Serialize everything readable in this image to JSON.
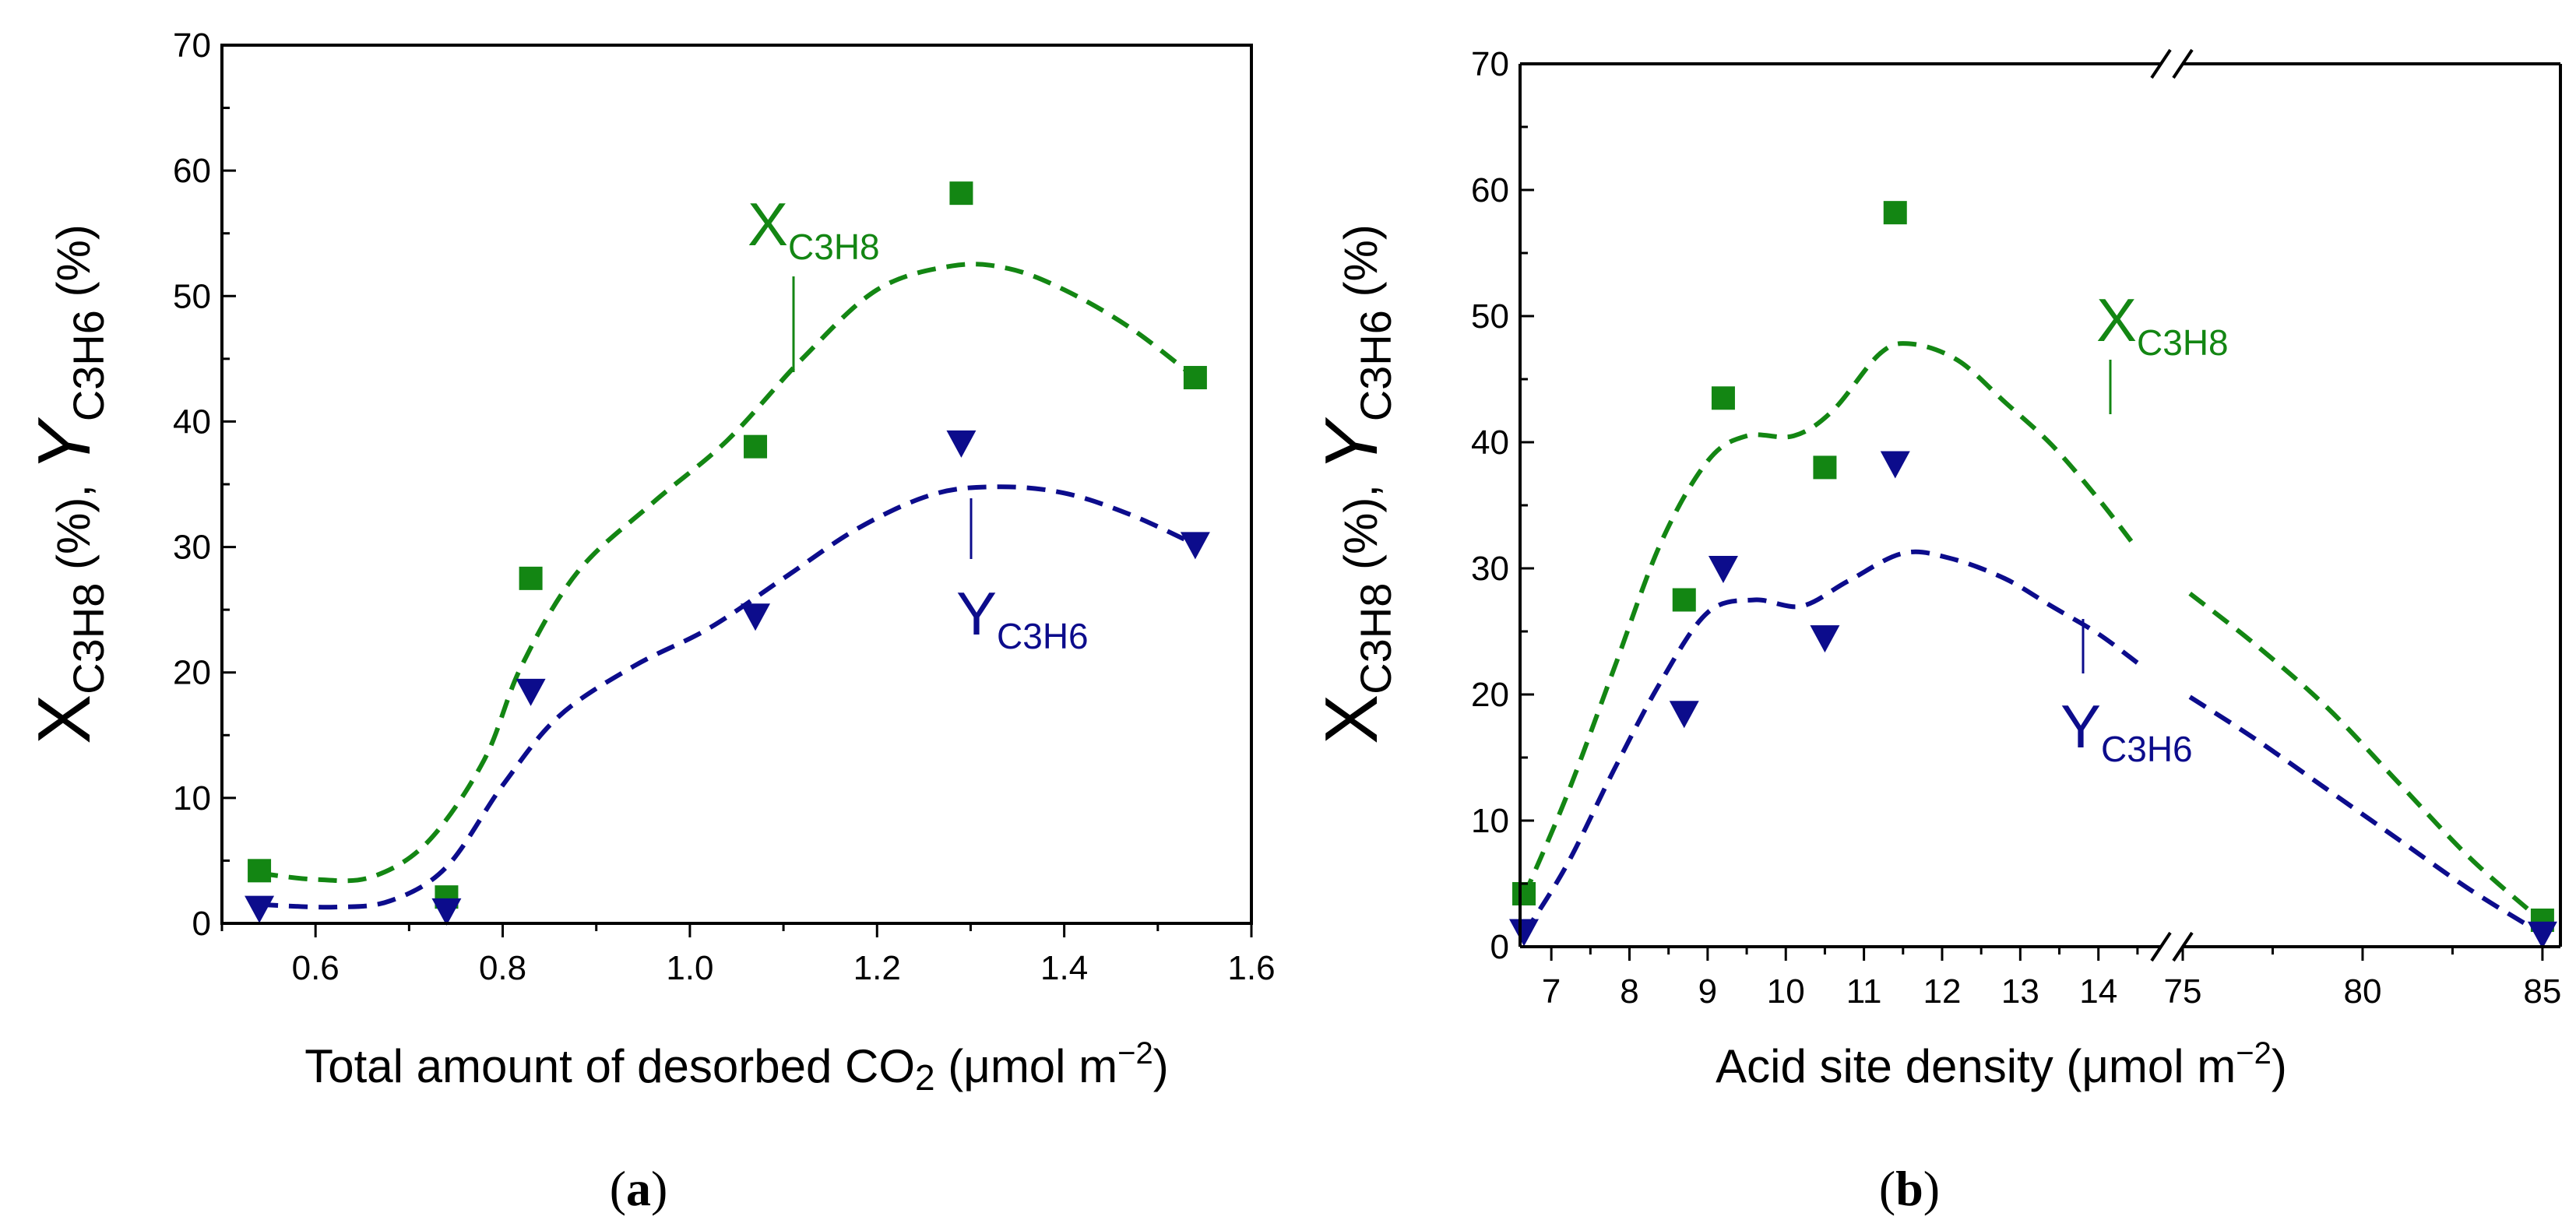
{
  "colors": {
    "conversion": "#138613",
    "yield": "#0c0c8c",
    "axis": "#000000"
  },
  "chart_data": [
    {
      "id": "a",
      "type": "scatter",
      "caption": "(a)",
      "xlabel": "Total amount of desorbed CO2 (μmol m−2)",
      "ylabel": "XC3H8 (%),  YC3H6 (%)",
      "xlim": [
        0.5,
        1.6
      ],
      "ylim": [
        0,
        70
      ],
      "xticks": [
        "0.6",
        "0.8",
        "1.0",
        "1.2",
        "1.4",
        "1.6"
      ],
      "yticks": [
        "0",
        "10",
        "20",
        "30",
        "40",
        "50",
        "60",
        "70"
      ],
      "series": [
        {
          "name": "XC3H8",
          "label_main": "X",
          "label_sub": "C3H8",
          "marker": "square",
          "x": [
            0.54,
            0.74,
            0.83,
            1.07,
            1.29,
            1.54
          ],
          "y": [
            4.2,
            2.1,
            27.5,
            38.0,
            58.2,
            43.5
          ],
          "trend": [
            [
              0.54,
              4.0
            ],
            [
              0.6,
              3.5
            ],
            [
              0.66,
              3.7
            ],
            [
              0.72,
              6.5
            ],
            [
              0.78,
              13
            ],
            [
              0.82,
              20.5
            ],
            [
              0.88,
              28
            ],
            [
              0.96,
              33.5
            ],
            [
              1.04,
              38.5
            ],
            [
              1.12,
              45
            ],
            [
              1.2,
              50.5
            ],
            [
              1.28,
              52.4
            ],
            [
              1.34,
              52.2
            ],
            [
              1.4,
              50.5
            ],
            [
              1.47,
              47.5
            ],
            [
              1.54,
              43.5
            ]
          ]
        },
        {
          "name": "YC3H6",
          "label_main": "Y",
          "label_sub": "C3H6",
          "marker": "triangle-down",
          "x": [
            0.54,
            0.74,
            0.83,
            1.07,
            1.29,
            1.54
          ],
          "y": [
            1.2,
            1.0,
            18.5,
            24.5,
            38.3,
            30.2
          ],
          "trend": [
            [
              0.54,
              1.5
            ],
            [
              0.62,
              1.3
            ],
            [
              0.68,
              1.8
            ],
            [
              0.74,
              4.5
            ],
            [
              0.8,
              11
            ],
            [
              0.86,
              16.5
            ],
            [
              0.94,
              20.5
            ],
            [
              1.02,
              23.5
            ],
            [
              1.1,
              27.5
            ],
            [
              1.18,
              31.5
            ],
            [
              1.26,
              34.2
            ],
            [
              1.33,
              34.8
            ],
            [
              1.4,
              34.3
            ],
            [
              1.47,
              32.6
            ],
            [
              1.54,
              30.2
            ]
          ]
        }
      ]
    },
    {
      "id": "b",
      "type": "scatter",
      "caption": "(b)",
      "xlabel": "Acid site density (μmol m−2)",
      "ylabel": "XC3H8 (%),  YC3H6 (%)",
      "x_axis_break": "between 14 and 75",
      "xlim_low": [
        6.6,
        14.8
      ],
      "xlim_high": [
        75,
        85.5
      ],
      "ylim": [
        0,
        70
      ],
      "xticks": [
        "7",
        "8",
        "9",
        "10",
        "11",
        "12",
        "13",
        "14",
        "75",
        "80",
        "85"
      ],
      "yticks": [
        "0",
        "10",
        "20",
        "30",
        "40",
        "50",
        "60",
        "70"
      ],
      "series": [
        {
          "name": "XC3H8",
          "label_main": "X",
          "label_sub": "C3H8",
          "marker": "square",
          "x": [
            6.65,
            8.7,
            9.2,
            10.5,
            11.4,
            85
          ],
          "y": [
            4.2,
            27.5,
            43.5,
            38.0,
            58.2,
            2.1
          ],
          "trend": [
            [
              6.65,
              4.0
            ],
            [
              7.2,
              12
            ],
            [
              7.8,
              22
            ],
            [
              8.4,
              32
            ],
            [
              9.0,
              38.5
            ],
            [
              9.5,
              40.5
            ],
            [
              10.1,
              40.5
            ],
            [
              10.6,
              42.5
            ],
            [
              11.2,
              47.0
            ],
            [
              11.6,
              47.8
            ],
            [
              12.2,
              46.5
            ],
            [
              12.8,
              43.2
            ],
            [
              13.4,
              39.8
            ],
            [
              14.0,
              35.5
            ],
            [
              14.5,
              31.5
            ],
            [
              75.2,
              28.0
            ],
            [
              77,
              24
            ],
            [
              79,
              19
            ],
            [
              81,
              13
            ],
            [
              83,
              7
            ],
            [
              85,
              2.0
            ]
          ]
        },
        {
          "name": "YC3H6",
          "label_main": "Y",
          "label_sub": "C3H6",
          "marker": "triangle-down",
          "x": [
            6.65,
            8.7,
            9.2,
            10.5,
            11.4,
            85
          ],
          "y": [
            1.2,
            18.5,
            30.0,
            24.5,
            38.3,
            1.0
          ],
          "trend": [
            [
              6.65,
              1.0
            ],
            [
              7.2,
              6.5
            ],
            [
              7.8,
              14
            ],
            [
              8.4,
              21
            ],
            [
              9.0,
              26.5
            ],
            [
              9.6,
              27.5
            ],
            [
              10.2,
              27.0
            ],
            [
              10.8,
              29.0
            ],
            [
              11.5,
              31.2
            ],
            [
              12.1,
              30.8
            ],
            [
              12.8,
              29.2
            ],
            [
              13.4,
              27.0
            ],
            [
              14.0,
              24.8
            ],
            [
              14.5,
              22.5
            ],
            [
              75.2,
              19.8
            ],
            [
              77,
              16.5
            ],
            [
              79,
              12.5
            ],
            [
              81,
              8.5
            ],
            [
              83,
              4.5
            ],
            [
              85,
              1.0
            ]
          ]
        }
      ]
    }
  ]
}
